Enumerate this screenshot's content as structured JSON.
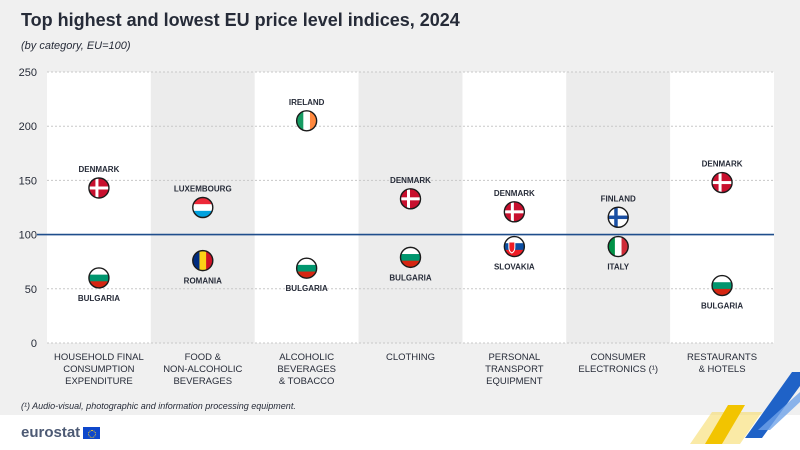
{
  "header": {
    "title": "Top highest and lowest EU price level indices, 2024",
    "subtitle": "(by category, EU=100)"
  },
  "footnote": "(¹) Audio-visual, photographic and information processing equipment.",
  "logo": {
    "text": "eurostat"
  },
  "colors": {
    "reference_line": "#1f4e8c",
    "grid": "#c8c8c8",
    "band_light": "#ffffff",
    "band_dark": "#ececec",
    "accent_yellow": "#f2c400",
    "accent_blue": "#1f62c7"
  },
  "chart_data": {
    "type": "scatter",
    "title": "Top highest and lowest EU price level indices, 2024",
    "subtitle": "(by category, EU=100)",
    "ylim": [
      0,
      250
    ],
    "yticks": [
      0,
      50,
      100,
      150,
      200,
      250
    ],
    "reference_line": 100,
    "grid": true,
    "categories": [
      [
        "HOUSEHOLD FINAL",
        "CONSUMPTION",
        "EXPENDITURE"
      ],
      [
        "FOOD &",
        "NON-ALCOHOLIC",
        "BEVERAGES"
      ],
      [
        "ALCOHOLIC",
        "BEVERAGES",
        "& TOBACCO"
      ],
      [
        "CLOTHING"
      ],
      [
        "PERSONAL",
        "TRANSPORT",
        "EQUIPMENT"
      ],
      [
        "CONSUMER",
        "ELECTRONICS (¹)"
      ],
      [
        "RESTAURANTS",
        "& HOTELS"
      ]
    ],
    "series": [
      {
        "name": "highest",
        "points": [
          {
            "country": "DENMARK",
            "flag": "denmark",
            "value": 143
          },
          {
            "country": "LUXEMBOURG",
            "flag": "luxembourg",
            "value": 125
          },
          {
            "country": "IRELAND",
            "flag": "ireland",
            "value": 205
          },
          {
            "country": "DENMARK",
            "flag": "denmark",
            "value": 133
          },
          {
            "country": "DENMARK",
            "flag": "denmark",
            "value": 121
          },
          {
            "country": "FINLAND",
            "flag": "finland",
            "value": 116
          },
          {
            "country": "DENMARK",
            "flag": "denmark",
            "value": 148
          }
        ]
      },
      {
        "name": "lowest",
        "points": [
          {
            "country": "BULGARIA",
            "flag": "bulgaria",
            "value": 60
          },
          {
            "country": "ROMANIA",
            "flag": "romania",
            "value": 76
          },
          {
            "country": "BULGARIA",
            "flag": "bulgaria",
            "value": 69
          },
          {
            "country": "BULGARIA",
            "flag": "bulgaria",
            "value": 79
          },
          {
            "country": "SLOVAKIA",
            "flag": "slovakia",
            "value": 89
          },
          {
            "country": "ITALY",
            "flag": "italy",
            "value": 89
          },
          {
            "country": "BULGARIA",
            "flag": "bulgaria",
            "value": 53
          }
        ]
      }
    ]
  }
}
